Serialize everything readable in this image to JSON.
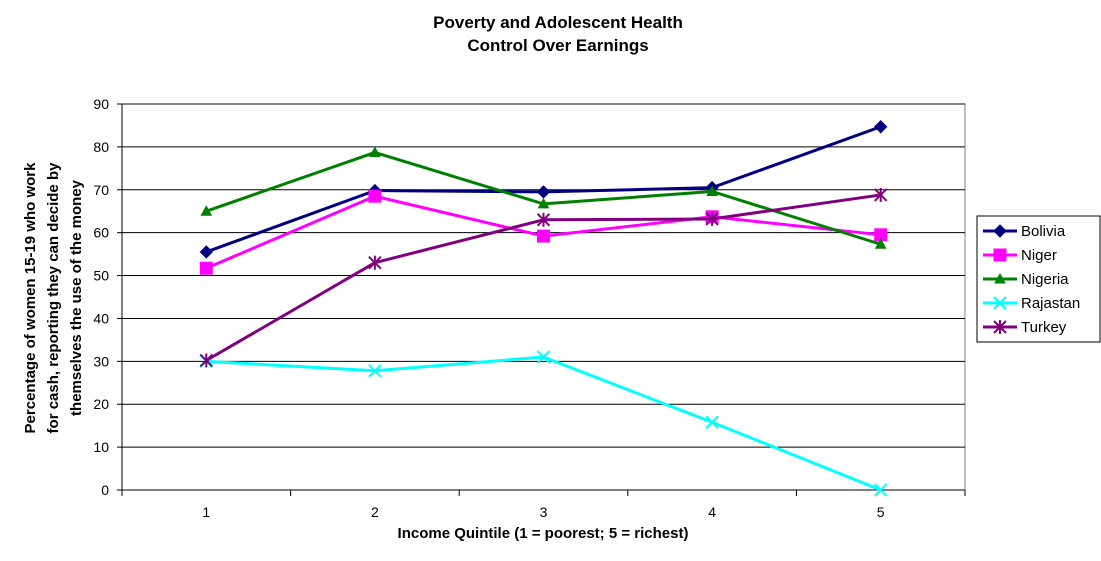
{
  "chart_data": {
    "type": "line",
    "title": [
      "Poverty and Adolescent Health",
      "Control Over Earnings"
    ],
    "xlabel": "Income Quintile (1 = poorest; 5 = richest)",
    "ylabel": [
      "Percentage of women 15-19 who work",
      "for cash, reporting they can decide by",
      "themselves the use of the money"
    ],
    "categories": [
      "1",
      "2",
      "3",
      "4",
      "5"
    ],
    "ylim": [
      0,
      90
    ],
    "yticks": [
      0,
      10,
      20,
      30,
      40,
      50,
      60,
      70,
      80,
      90
    ],
    "grid": "horizontal",
    "legend_position": "right",
    "series": [
      {
        "name": "Bolivia",
        "color": "#000080",
        "marker": "diamond",
        "values": [
          55.5,
          69.8,
          69.5,
          70.5,
          84.7
        ]
      },
      {
        "name": "Niger",
        "color": "#FF00FF",
        "marker": "square",
        "values": [
          51.7,
          68.5,
          59.2,
          63.7,
          59.5
        ]
      },
      {
        "name": "Nigeria",
        "color": "#008000",
        "marker": "triangle",
        "values": [
          65.0,
          78.7,
          66.7,
          69.6,
          57.3
        ]
      },
      {
        "name": "Rajastan",
        "color": "#00FFFF",
        "marker": "x",
        "values": [
          30.0,
          27.8,
          31.0,
          15.8,
          0.0
        ]
      },
      {
        "name": "Turkey",
        "color": "#800080",
        "marker": "asterisk",
        "values": [
          30.2,
          53.0,
          63.0,
          63.2,
          68.8
        ]
      }
    ]
  }
}
